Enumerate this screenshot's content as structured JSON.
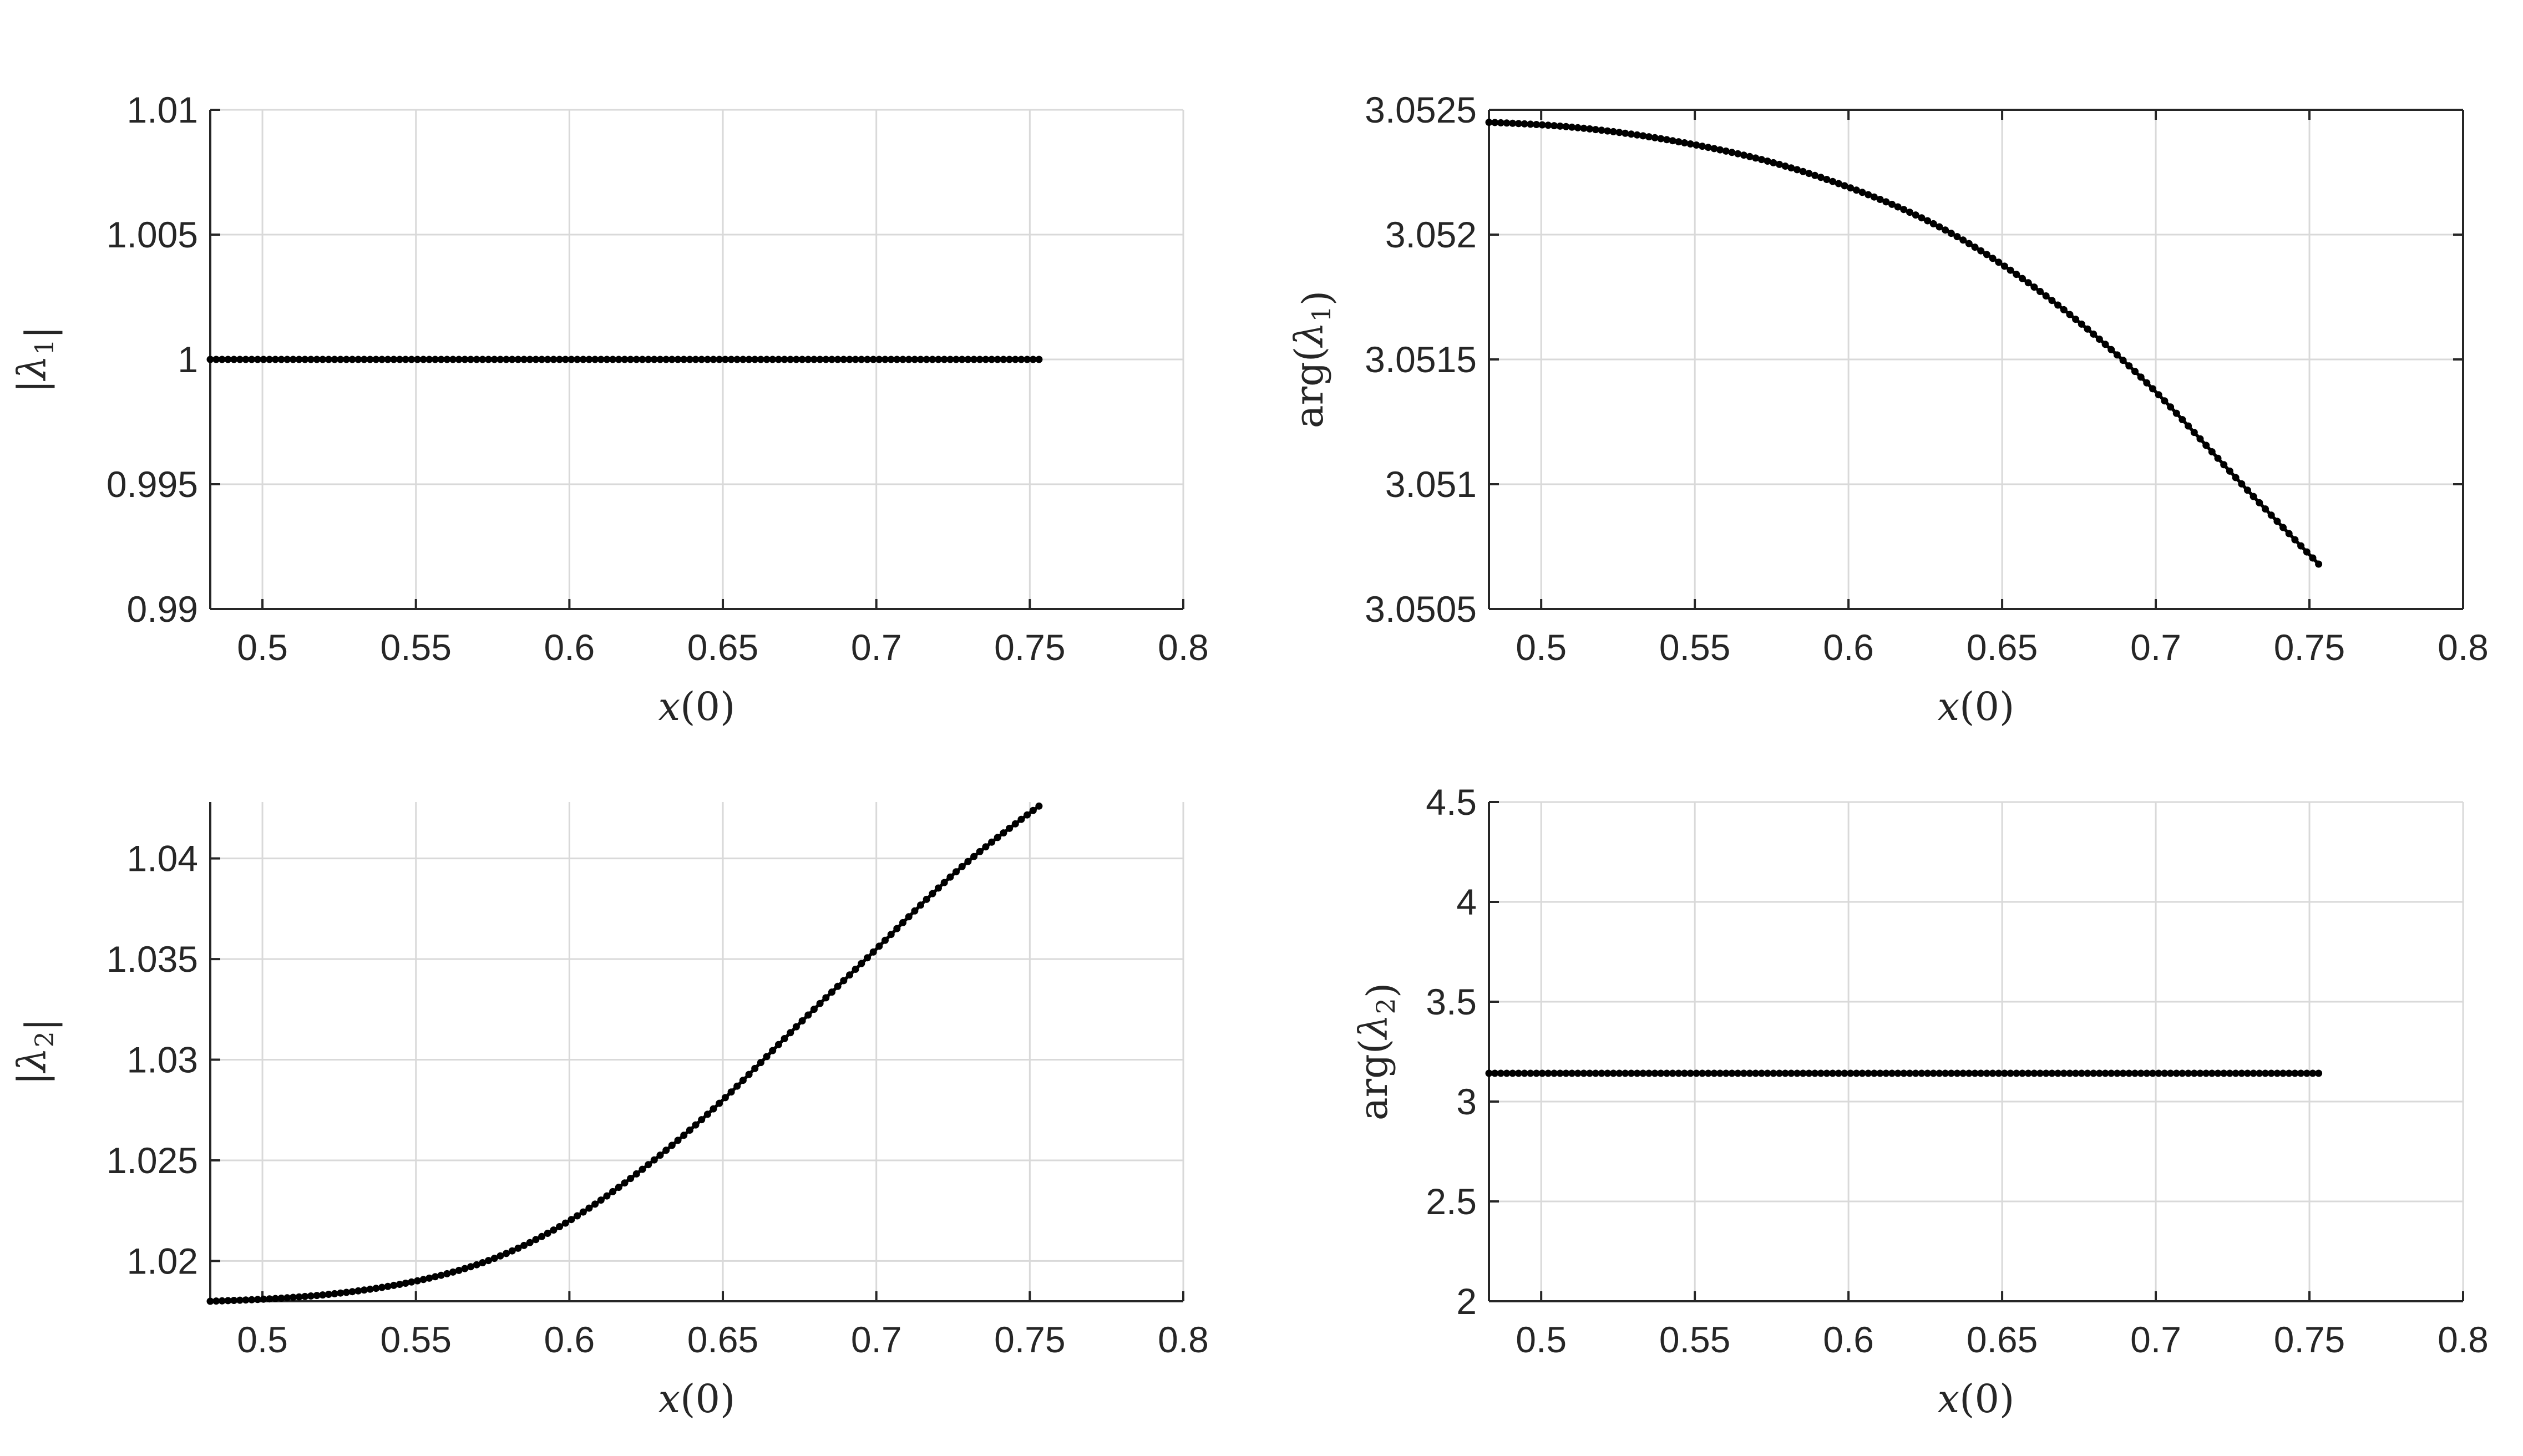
{
  "colors": {
    "series": "#000000",
    "grid": "#d9d9d9",
    "axis": "#262626"
  },
  "chart_data": [
    {
      "type": "line",
      "id": "abs-lambda1",
      "xlabel": "x(0)",
      "ylabel": "|λ1|",
      "xlim": [
        0.483,
        0.8
      ],
      "ylim": [
        0.99,
        1.01
      ],
      "xticks": [
        "0.5",
        "0.55",
        "0.6",
        "0.65",
        "0.7",
        "0.75",
        "0.8"
      ],
      "yticks": [
        "0.99",
        "0.995",
        "1",
        "1.005",
        "1.01"
      ],
      "grid": true,
      "box": false,
      "markers": "dot",
      "series": [
        {
          "x": [
            0.483,
            0.5,
            0.525,
            0.55,
            0.575,
            0.6,
            0.625,
            0.65,
            0.675,
            0.7,
            0.725,
            0.753
          ],
          "values": [
            1.0,
            1.0,
            1.0,
            1.0,
            1.0,
            1.0,
            1.0,
            1.0,
            1.0,
            1.0,
            1.0,
            1.0
          ]
        }
      ]
    },
    {
      "type": "line",
      "id": "arg-lambda1",
      "xlabel": "x(0)",
      "ylabel": "arg(λ1)",
      "xlim": [
        0.483,
        0.8
      ],
      "ylim": [
        3.0505,
        3.0525
      ],
      "xticks": [
        "0.5",
        "0.55",
        "0.6",
        "0.65",
        "0.7",
        "0.75",
        "0.8"
      ],
      "yticks": [
        "3.0505",
        "3.051",
        "3.0515",
        "3.052",
        "3.0525"
      ],
      "grid": true,
      "box": true,
      "markers": "dot",
      "series": [
        {
          "x": [
            0.483,
            0.5,
            0.525,
            0.55,
            0.575,
            0.6,
            0.625,
            0.65,
            0.675,
            0.7,
            0.725,
            0.753
          ],
          "values": [
            3.05245,
            3.05244,
            3.05241,
            3.05236,
            3.05229,
            3.05219,
            3.05206,
            3.05188,
            3.05165,
            3.05137,
            3.05104,
            3.05068
          ]
        }
      ]
    },
    {
      "type": "line",
      "id": "abs-lambda2",
      "xlabel": "x(0)",
      "ylabel": "|λ2|",
      "xlim": [
        0.483,
        0.8
      ],
      "ylim": [
        1.018,
        1.0428
      ],
      "xticks": [
        "0.5",
        "0.55",
        "0.6",
        "0.65",
        "0.7",
        "0.75",
        "0.8"
      ],
      "yticks": [
        "1.02",
        "1.025",
        "1.03",
        "1.035",
        "1.04"
      ],
      "grid": true,
      "box": false,
      "markers": "dot",
      "series": [
        {
          "x": [
            0.483,
            0.5,
            0.525,
            0.55,
            0.575,
            0.6,
            0.625,
            0.65,
            0.675,
            0.7,
            0.725,
            0.753
          ],
          "values": [
            1.018,
            1.0181,
            1.0184,
            1.019,
            1.0201,
            1.022,
            1.0247,
            1.028,
            1.0318,
            1.0355,
            1.0392,
            1.0426
          ]
        }
      ]
    },
    {
      "type": "line",
      "id": "arg-lambda2",
      "xlabel": "x(0)",
      "ylabel": "arg(λ2)",
      "xlim": [
        0.483,
        0.8
      ],
      "ylim": [
        2,
        4.5
      ],
      "xticks": [
        "0.5",
        "0.55",
        "0.6",
        "0.65",
        "0.7",
        "0.75",
        "0.8"
      ],
      "yticks": [
        "2",
        "2.5",
        "3",
        "3.5",
        "4",
        "4.5"
      ],
      "grid": true,
      "box": false,
      "markers": "dot",
      "series": [
        {
          "x": [
            0.483,
            0.5,
            0.525,
            0.55,
            0.575,
            0.6,
            0.625,
            0.65,
            0.675,
            0.7,
            0.725,
            0.753
          ],
          "values": [
            3.1416,
            3.1416,
            3.1416,
            3.1416,
            3.1416,
            3.1416,
            3.1416,
            3.1416,
            3.1416,
            3.1416,
            3.1416,
            3.1416
          ]
        }
      ]
    }
  ]
}
